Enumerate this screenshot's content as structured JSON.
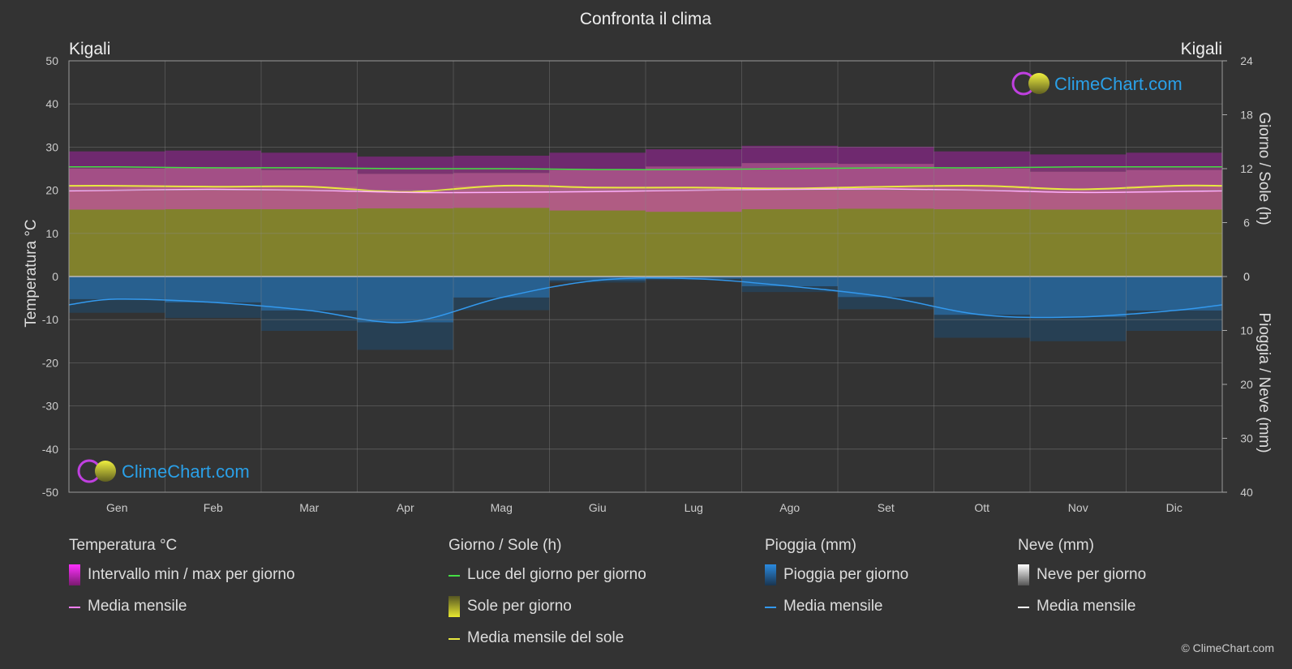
{
  "title": "Confronta il clima",
  "location_left": "Kigali",
  "location_right": "Kigali",
  "watermark": "ClimeChart.com",
  "copyright": "© ClimeChart.com",
  "colors": {
    "background": "#333333",
    "temp_range": "#e020d0",
    "temp_mean": "#ff80ff",
    "daylight": "#44dd44",
    "sunshine": "#c8c832",
    "sun_mean": "#e8e840",
    "rain": "#2a7fc0",
    "rain_mean": "#3399ee",
    "snow_mean": "#ffffff",
    "watermark_text": "#2aa0e8"
  },
  "chart_data": {
    "type": "area",
    "months": [
      "Gen",
      "Feb",
      "Mar",
      "Apr",
      "Mag",
      "Giu",
      "Lug",
      "Ago",
      "Set",
      "Ott",
      "Nov",
      "Dic"
    ],
    "axes": {
      "left": {
        "label": "Temperatura °C",
        "range": [
          -50,
          50
        ],
        "ticks": [
          50,
          40,
          30,
          20,
          10,
          0,
          -10,
          -20,
          -30,
          -40,
          -50
        ]
      },
      "right_top": {
        "label": "Giorno / Sole (h)",
        "range": [
          0,
          24
        ],
        "ticks": [
          24,
          18,
          12,
          6,
          0
        ]
      },
      "right_bottom": {
        "label": "Pioggia / Neve (mm)",
        "range": [
          0,
          40
        ],
        "ticks": [
          0,
          10,
          20,
          30,
          40
        ]
      }
    },
    "series": {
      "temp_max_mean": [
        26.5,
        26.7,
        26.2,
        25.3,
        25.5,
        26.2,
        27.0,
        27.8,
        27.6,
        26.5,
        25.8,
        26.2
      ],
      "temp_min_mean": [
        15.5,
        15.6,
        15.6,
        15.8,
        15.9,
        15.3,
        15.0,
        15.6,
        15.7,
        15.6,
        15.5,
        15.5
      ],
      "temp_mean": [
        20.0,
        20.2,
        20.0,
        19.5,
        19.5,
        19.7,
        20.0,
        20.2,
        20.3,
        20.0,
        19.5,
        19.7
      ],
      "daylight_hours": [
        12.2,
        12.1,
        12.1,
        12.0,
        12.0,
        11.9,
        11.9,
        12.0,
        12.1,
        12.1,
        12.2,
        12.2
      ],
      "sunshine_hours_mean": [
        10.1,
        10.0,
        10.0,
        9.4,
        10.1,
        9.9,
        9.9,
        9.8,
        10.0,
        10.1,
        9.7,
        10.1
      ],
      "rain_mean_mm": [
        4.2,
        4.8,
        6.3,
        8.5,
        3.9,
        0.7,
        0.4,
        1.8,
        3.8,
        7.1,
        7.5,
        6.3
      ],
      "snow_mean_mm": [
        0,
        0,
        0,
        0,
        0,
        0,
        0,
        0,
        0,
        0,
        0,
        0
      ]
    }
  },
  "legend": {
    "temperature": {
      "title": "Temperatura °C",
      "items": [
        "Intervallo min / max per giorno",
        "Media mensile"
      ]
    },
    "sun": {
      "title": "Giorno / Sole (h)",
      "items": [
        "Luce del giorno per giorno",
        "Sole per giorno",
        "Media mensile del sole"
      ]
    },
    "rain": {
      "title": "Pioggia (mm)",
      "items": [
        "Pioggia per giorno",
        "Media mensile"
      ]
    },
    "snow": {
      "title": "Neve (mm)",
      "items": [
        "Neve per giorno",
        "Media mensile"
      ]
    }
  }
}
